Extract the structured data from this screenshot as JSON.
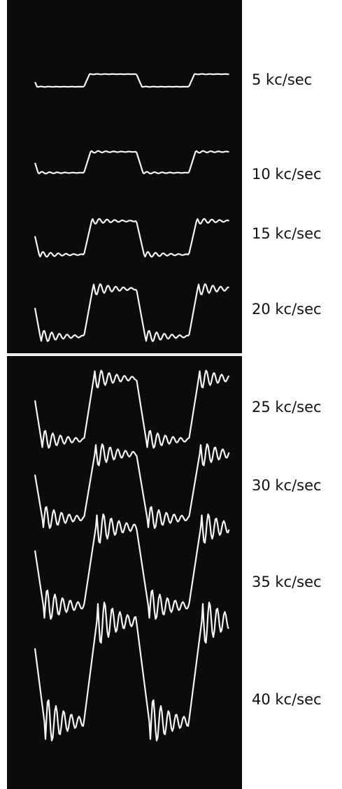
{
  "labels": [
    "5 kc/sec",
    "10 kc/sec",
    "15 kc/sec",
    "20 kc/sec",
    "25 kc/sec",
    "30 kc/sec",
    "35 kc/sec",
    "40 kc/sec"
  ]
}
